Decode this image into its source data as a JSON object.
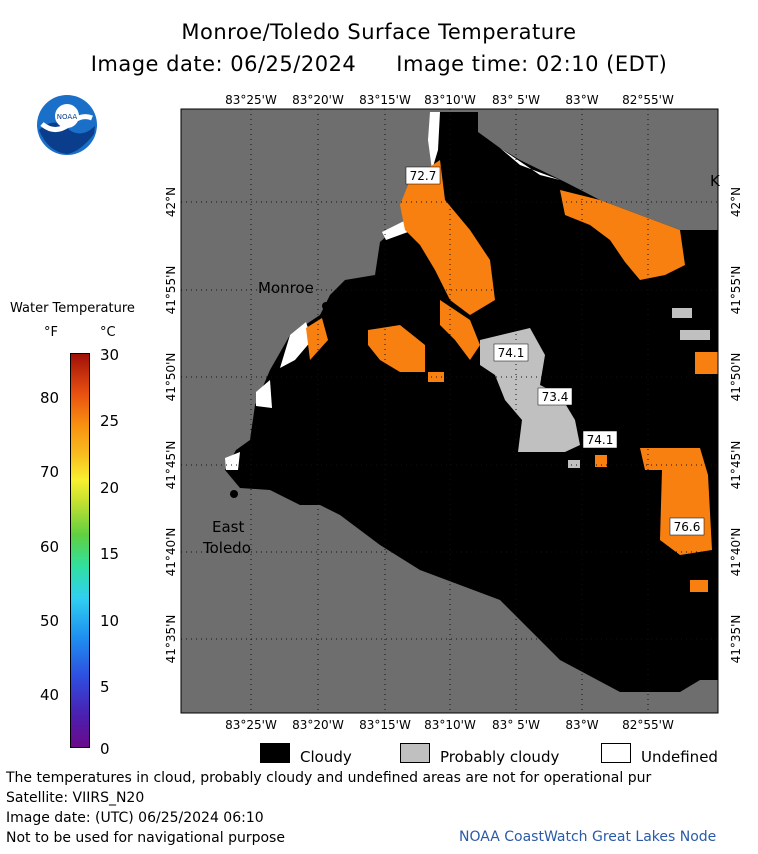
{
  "header": {
    "title": "Monroe/Toledo Surface Temperature",
    "image_date": "Image date: 06/25/2024",
    "image_time": "Image time: 02:10 (EDT)"
  },
  "logo": {
    "text": "NOAA",
    "icon": "noaa-logo-icon"
  },
  "legend": {
    "title": "Water Temperature",
    "unit_f": "°F",
    "unit_c": "°C",
    "f_ticks": [
      "80",
      "70",
      "60",
      "50",
      "40"
    ],
    "c_ticks": [
      "30",
      "25",
      "20",
      "15",
      "10",
      "5",
      "0"
    ]
  },
  "map": {
    "top_lon_labels": [
      "83°25'W",
      "83°20'W",
      "83°15'W",
      "83°10'W",
      "83° 5'W",
      "83°W",
      "82°55'W"
    ],
    "bottom_lon_labels": [
      "83°25'W",
      "83°20'W",
      "83°15'W",
      "83°10'W",
      "83° 5'W",
      "83°W",
      "82°55'W"
    ],
    "left_lat_labels": [
      "42°N",
      "41°55'N",
      "41°50'N",
      "41°45'N",
      "41°40'N",
      "41°35'N"
    ],
    "right_lat_labels": [
      "42°N",
      "41°55'N",
      "41°50'N",
      "41°45'N",
      "41°40'N",
      "41°35'N"
    ],
    "places": {
      "monroe": "Monroe",
      "east": "East",
      "toledo": "Toledo",
      "k": "K"
    },
    "temp_labels": [
      "72.7",
      "74.1",
      "73.4",
      "74.1",
      "76.6"
    ],
    "colors": {
      "land": "#6e6e6e",
      "cloud": "#000000",
      "probably_cloudy": "#c0c0c0",
      "undefined": "#ffffff",
      "warm_water": "#f88010"
    }
  },
  "cloud_legend": {
    "cloudy": "Cloudy",
    "probably_cloudy": "Probably cloudy",
    "undefined": "Undefined"
  },
  "footer": {
    "disclaimer": "The temperatures in cloud, probably cloudy and undefined areas are not for operational pur",
    "satellite": "Satellite: VIIRS_N20",
    "utc_date": "Image date: (UTC) 06/25/2024  06:10",
    "nav": "Not to be used for navigational purpose",
    "credit": "NOAA CoastWatch Great Lakes Node"
  }
}
